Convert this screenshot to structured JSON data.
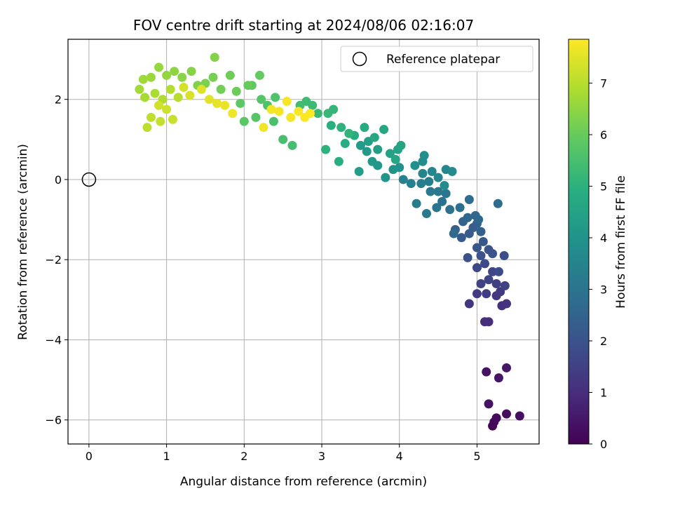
{
  "chart_data": {
    "type": "scatter",
    "title": "FOV centre drift starting at 2024/08/06 02:16:07",
    "xlabel": "Angular distance from reference (arcmin)",
    "ylabel": "Rotation from reference (arcmin)",
    "colorbar_label": "Hours from first FF file",
    "xlim": [
      -0.27,
      5.8
    ],
    "ylim": [
      -6.6,
      3.5
    ],
    "x_ticks": [
      0,
      1,
      2,
      3,
      4,
      5
    ],
    "y_ticks": [
      -6,
      -4,
      -2,
      0,
      2
    ],
    "colorbar_range": [
      0,
      7.85
    ],
    "colorbar_ticks": [
      0,
      1,
      2,
      3,
      4,
      5,
      6,
      7
    ],
    "colormap": "viridis",
    "grid": true,
    "legend": {
      "position": "top-right",
      "entries": [
        "Reference platepar"
      ]
    },
    "reference_point": {
      "x": 0,
      "y": 0
    },
    "series": [
      {
        "color_by": "hours",
        "points": [
          [
            5.2,
            -6.15,
            0.1
          ],
          [
            5.22,
            -6.05,
            0.15
          ],
          [
            5.25,
            -5.95,
            0.2
          ],
          [
            5.38,
            -5.85,
            0.25
          ],
          [
            5.55,
            -5.9,
            0.3
          ],
          [
            5.15,
            -5.6,
            0.35
          ],
          [
            5.12,
            -4.8,
            0.4
          ],
          [
            5.28,
            -4.95,
            0.45
          ],
          [
            5.38,
            -4.7,
            0.5
          ],
          [
            5.1,
            -3.55,
            1.0
          ],
          [
            5.15,
            -3.55,
            1.05
          ],
          [
            5.32,
            -3.15,
            1.1
          ],
          [
            5.38,
            -3.1,
            1.15
          ],
          [
            4.9,
            -3.1,
            1.2
          ],
          [
            5.25,
            -2.9,
            1.25
          ],
          [
            5.3,
            -2.8,
            1.3
          ],
          [
            5.0,
            -2.85,
            1.35
          ],
          [
            5.12,
            -2.85,
            1.4
          ],
          [
            5.25,
            -2.6,
            1.45
          ],
          [
            5.36,
            -2.65,
            1.5
          ],
          [
            5.05,
            -2.6,
            1.55
          ],
          [
            5.15,
            -2.5,
            1.6
          ],
          [
            5.2,
            -2.3,
            1.65
          ],
          [
            5.0,
            -2.2,
            1.7
          ],
          [
            5.1,
            -2.1,
            1.75
          ],
          [
            5.28,
            -2.3,
            1.8
          ],
          [
            5.35,
            -1.9,
            1.85
          ],
          [
            4.88,
            -1.95,
            1.9
          ],
          [
            5.05,
            -1.9,
            1.95
          ],
          [
            5.15,
            -1.75,
            2.0
          ],
          [
            5.2,
            -1.85,
            2.05
          ],
          [
            5.0,
            -1.7,
            2.1
          ],
          [
            5.08,
            -1.55,
            2.15
          ],
          [
            4.8,
            -1.45,
            2.2
          ],
          [
            4.9,
            -1.35,
            2.25
          ],
          [
            4.95,
            -1.2,
            2.3
          ],
          [
            5.0,
            -1.1,
            2.35
          ],
          [
            5.05,
            -1.3,
            2.4
          ],
          [
            4.72,
            -1.25,
            2.45
          ],
          [
            4.82,
            -1.05,
            2.5
          ],
          [
            4.88,
            -0.95,
            2.55
          ],
          [
            4.98,
            -0.9,
            2.6
          ],
          [
            5.02,
            -1.0,
            2.65
          ],
          [
            4.7,
            -1.35,
            2.7
          ],
          [
            5.27,
            -0.6,
            2.75
          ],
          [
            4.9,
            -0.5,
            2.8
          ],
          [
            4.78,
            -0.7,
            2.85
          ],
          [
            4.65,
            -0.75,
            2.9
          ],
          [
            4.55,
            -0.55,
            2.95
          ],
          [
            4.48,
            -0.7,
            3.0
          ],
          [
            4.6,
            -0.35,
            3.05
          ],
          [
            4.5,
            -0.3,
            3.1
          ],
          [
            4.4,
            -0.3,
            3.15
          ],
          [
            4.35,
            -0.85,
            3.2
          ],
          [
            4.22,
            -0.6,
            3.25
          ],
          [
            4.38,
            -0.05,
            3.3
          ],
          [
            4.28,
            -0.1,
            3.35
          ],
          [
            4.15,
            -0.1,
            3.4
          ],
          [
            4.05,
            0.0,
            3.45
          ],
          [
            4.3,
            0.15,
            3.5
          ],
          [
            4.42,
            0.2,
            3.55
          ],
          [
            4.5,
            0.05,
            3.6
          ],
          [
            4.6,
            0.25,
            3.65
          ],
          [
            4.68,
            0.2,
            3.7
          ],
          [
            4.58,
            -0.15,
            3.75
          ],
          [
            4.3,
            0.45,
            3.8
          ],
          [
            4.32,
            0.6,
            3.85
          ],
          [
            4.2,
            0.35,
            3.9
          ],
          [
            4.0,
            0.3,
            3.95
          ],
          [
            3.92,
            0.25,
            4.0
          ],
          [
            3.82,
            0.05,
            4.05
          ],
          [
            3.72,
            0.35,
            4.1
          ],
          [
            3.65,
            0.45,
            4.15
          ],
          [
            3.58,
            0.7,
            4.2
          ],
          [
            3.5,
            0.85,
            4.25
          ],
          [
            3.48,
            0.2,
            4.3
          ],
          [
            3.6,
            0.95,
            4.35
          ],
          [
            3.72,
            0.75,
            4.4
          ],
          [
            3.88,
            0.65,
            4.45
          ],
          [
            3.98,
            0.75,
            4.5
          ],
          [
            4.02,
            0.85,
            4.55
          ],
          [
            3.95,
            0.5,
            4.6
          ],
          [
            3.8,
            1.25,
            4.65
          ],
          [
            3.68,
            1.05,
            4.7
          ],
          [
            3.55,
            1.3,
            4.75
          ],
          [
            3.42,
            1.1,
            4.8
          ],
          [
            3.3,
            0.9,
            4.85
          ],
          [
            3.22,
            0.45,
            4.9
          ],
          [
            3.12,
            1.35,
            4.95
          ],
          [
            3.05,
            0.75,
            5.0
          ],
          [
            3.25,
            1.3,
            5.05
          ],
          [
            3.35,
            1.15,
            5.1
          ],
          [
            3.15,
            1.75,
            5.15
          ],
          [
            3.08,
            1.65,
            5.2
          ],
          [
            2.95,
            1.65,
            5.25
          ],
          [
            2.88,
            1.85,
            5.3
          ],
          [
            2.8,
            1.95,
            5.35
          ],
          [
            2.72,
            1.85,
            5.4
          ],
          [
            2.62,
            0.85,
            5.45
          ],
          [
            2.5,
            1.0,
            5.5
          ],
          [
            2.38,
            1.45,
            5.55
          ],
          [
            2.3,
            1.85,
            5.6
          ],
          [
            2.4,
            2.05,
            5.65
          ],
          [
            2.22,
            2.0,
            5.7
          ],
          [
            2.15,
            1.55,
            5.75
          ],
          [
            2.0,
            1.45,
            5.8
          ],
          [
            1.95,
            1.9,
            5.85
          ],
          [
            2.1,
            2.35,
            5.9
          ],
          [
            2.2,
            2.6,
            5.95
          ],
          [
            2.05,
            2.35,
            6.0
          ],
          [
            1.9,
            2.2,
            6.05
          ],
          [
            1.82,
            2.6,
            6.1
          ],
          [
            1.7,
            2.25,
            6.15
          ],
          [
            1.6,
            2.55,
            6.2
          ],
          [
            1.5,
            2.4,
            6.25
          ],
          [
            1.4,
            2.35,
            6.3
          ],
          [
            1.62,
            3.05,
            6.35
          ],
          [
            1.32,
            2.7,
            6.4
          ],
          [
            1.2,
            2.55,
            6.45
          ],
          [
            1.1,
            2.7,
            6.5
          ],
          [
            1.0,
            2.6,
            6.55
          ],
          [
            0.9,
            2.8,
            6.6
          ],
          [
            0.8,
            2.55,
            6.65
          ],
          [
            0.7,
            2.5,
            6.7
          ],
          [
            0.65,
            2.25,
            6.75
          ],
          [
            0.72,
            2.05,
            6.8
          ],
          [
            0.85,
            2.15,
            6.85
          ],
          [
            0.95,
            2.0,
            6.9
          ],
          [
            1.05,
            2.25,
            6.95
          ],
          [
            1.15,
            2.05,
            7.0
          ],
          [
            0.75,
            1.3,
            7.05
          ],
          [
            0.8,
            1.55,
            7.1
          ],
          [
            0.92,
            1.45,
            7.15
          ],
          [
            1.08,
            1.5,
            7.2
          ],
          [
            1.0,
            1.75,
            7.25
          ],
          [
            0.9,
            1.85,
            7.3
          ],
          [
            1.22,
            2.3,
            7.35
          ],
          [
            1.3,
            2.1,
            7.4
          ],
          [
            1.45,
            2.25,
            7.45
          ],
          [
            1.55,
            2.0,
            7.5
          ],
          [
            1.65,
            1.9,
            7.55
          ],
          [
            1.75,
            1.85,
            7.6
          ],
          [
            1.85,
            1.65,
            7.65
          ],
          [
            2.25,
            1.3,
            7.7
          ],
          [
            2.35,
            1.75,
            7.72
          ],
          [
            2.45,
            1.7,
            7.74
          ],
          [
            2.55,
            1.95,
            7.76
          ],
          [
            2.6,
            1.55,
            7.78
          ],
          [
            2.7,
            1.7,
            7.8
          ],
          [
            2.78,
            1.55,
            7.82
          ],
          [
            2.85,
            1.65,
            7.84
          ]
        ]
      }
    ]
  }
}
